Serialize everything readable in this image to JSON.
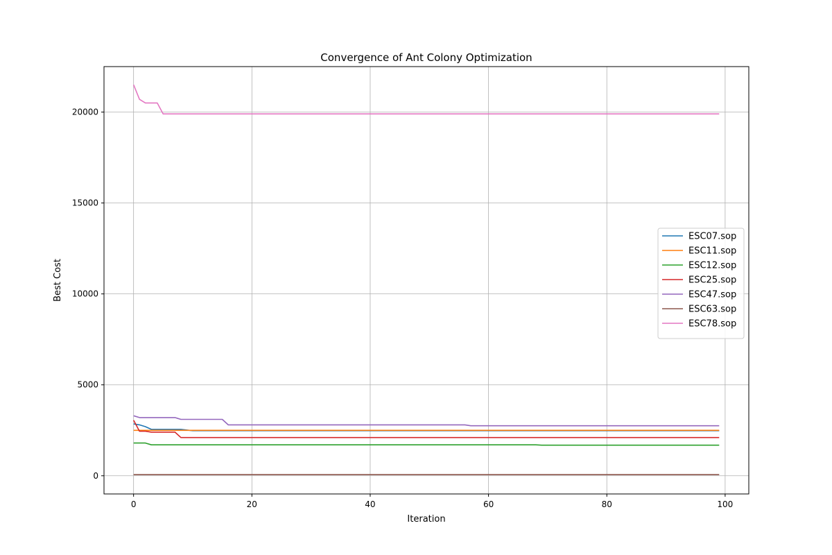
{
  "chart_data": {
    "type": "line",
    "title": "Convergence of Ant Colony Optimization",
    "xlabel": "Iteration",
    "ylabel": "Best Cost",
    "xlim": [
      -5,
      104
    ],
    "ylim": [
      -1000,
      22500
    ],
    "xticks": [
      0,
      20,
      40,
      60,
      80,
      100
    ],
    "yticks": [
      0,
      5000,
      10000,
      15000,
      20000
    ],
    "grid": true,
    "legend_position": "center-right",
    "series": [
      {
        "name": "ESC07.sop",
        "color": "#1f77b4",
        "points": [
          [
            0,
            2850
          ],
          [
            1,
            2800
          ],
          [
            2,
            2700
          ],
          [
            3,
            2550
          ],
          [
            8,
            2550
          ],
          [
            10,
            2480
          ],
          [
            99,
            2480
          ]
        ]
      },
      {
        "name": "ESC11.sop",
        "color": "#ff7f0e",
        "points": [
          [
            0,
            2500
          ],
          [
            99,
            2500
          ]
        ]
      },
      {
        "name": "ESC12.sop",
        "color": "#2ca02c",
        "points": [
          [
            0,
            1800
          ],
          [
            2,
            1800
          ],
          [
            3,
            1700
          ],
          [
            68,
            1700
          ],
          [
            69,
            1680
          ],
          [
            99,
            1680
          ]
        ]
      },
      {
        "name": "ESC25.sop",
        "color": "#d62728",
        "points": [
          [
            0,
            3050
          ],
          [
            1,
            2450
          ],
          [
            2,
            2450
          ],
          [
            3,
            2400
          ],
          [
            7,
            2400
          ],
          [
            8,
            2100
          ],
          [
            99,
            2100
          ]
        ]
      },
      {
        "name": "ESC47.sop",
        "color": "#9467bd",
        "points": [
          [
            0,
            3300
          ],
          [
            1,
            3200
          ],
          [
            7,
            3200
          ],
          [
            8,
            3100
          ],
          [
            15,
            3100
          ],
          [
            16,
            2800
          ],
          [
            56,
            2800
          ],
          [
            57,
            2750
          ],
          [
            99,
            2750
          ]
        ]
      },
      {
        "name": "ESC63.sop",
        "color": "#8c564b",
        "points": [
          [
            0,
            62
          ],
          [
            99,
            62
          ]
        ]
      },
      {
        "name": "ESC78.sop",
        "color": "#e377c2",
        "points": [
          [
            0,
            21500
          ],
          [
            1,
            20700
          ],
          [
            2,
            20500
          ],
          [
            4,
            20500
          ],
          [
            5,
            19900
          ],
          [
            99,
            19900
          ]
        ]
      }
    ]
  }
}
